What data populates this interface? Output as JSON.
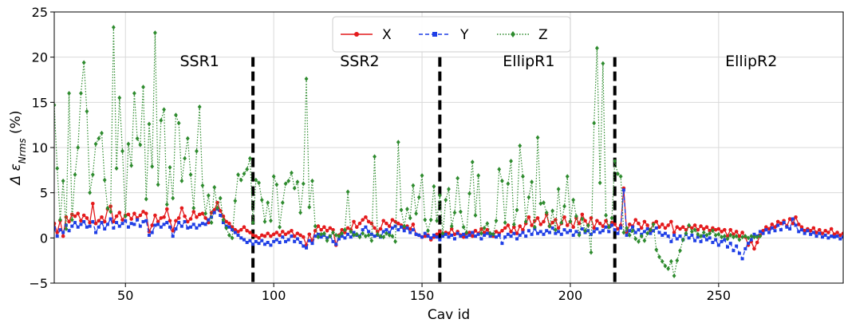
{
  "chart_data": {
    "type": "line",
    "title": "",
    "xlabel": "Cav id",
    "ylabel_prefix": "Δ ε",
    "ylabel_sub": "Nrms",
    "ylabel_suffix": " (%)",
    "xlim": [
      26,
      292
    ],
    "ylim": [
      -5,
      25
    ],
    "xticks": [
      50,
      100,
      150,
      200,
      250
    ],
    "yticks": [
      -5,
      0,
      5,
      10,
      15,
      20,
      25
    ],
    "grid": true,
    "legend_position": "top-center",
    "dividers": [
      93,
      156,
      215
    ],
    "regions": [
      {
        "label": "SSR1",
        "x": 75,
        "y": 19
      },
      {
        "label": "SSR2",
        "x": 129,
        "y": 19
      },
      {
        "label": "EllipR1",
        "x": 186,
        "y": 19
      },
      {
        "label": "EllipR2",
        "x": 261,
        "y": 19
      }
    ],
    "series": [
      {
        "name": "X",
        "color": "#e41a1c",
        "dash": "",
        "marker": "circle",
        "values": [
          1.6,
          0.6,
          1.9,
          0.2,
          2.3,
          1.8,
          2.6,
          2.4,
          2.7,
          1.9,
          2.5,
          2.2,
          1.7,
          3.8,
          1.6,
          1.9,
          2.3,
          1.8,
          3.2,
          3.5,
          1.8,
          2.4,
          2.8,
          2.0,
          2.5,
          2.6,
          2.1,
          2.7,
          2.2,
          2.5,
          2.9,
          2.7,
          0.7,
          1.4,
          2.5,
          1.8,
          2.2,
          2.3,
          3.2,
          1.9,
          0.8,
          1.9,
          2.2,
          3.3,
          2.4,
          1.8,
          2.1,
          2.9,
          2.3,
          2.6,
          2.7,
          2.2,
          1.7,
          2.8,
          3.1,
          3.9,
          3.0,
          2.4,
          1.8,
          1.6,
          1.2,
          0.9,
          0.7,
          0.9,
          1.2,
          0.8,
          0.6,
          0.3,
          0.2,
          0.0,
          0.3,
          0.2,
          0.5,
          0.2,
          0.4,
          0.6,
          0.3,
          0.7,
          0.4,
          0.6,
          0.8,
          0.2,
          0.5,
          0.3,
          0.1,
          -0.8,
          0.4,
          -0.3,
          0.8,
          1.3,
          0.9,
          1.2,
          0.8,
          1.1,
          0.9,
          -0.8,
          0.3,
          0.9,
          0.6,
          1.1,
          0.9,
          1.8,
          1.2,
          1.6,
          2.0,
          2.3,
          1.8,
          1.6,
          1.1,
          0.7,
          1.0,
          1.9,
          1.6,
          1.3,
          2.0,
          1.8,
          1.6,
          1.4,
          1.1,
          1.3,
          1.0,
          1.5,
          0.4,
          0.3,
          0.1,
          0.2,
          0.3,
          -0.2,
          0.1,
          0.4,
          0.7,
          0.3,
          0.6,
          0.5,
          1.0,
          0.4,
          0.7,
          0.3,
          0.1,
          0.5,
          0.6,
          0.2,
          0.8,
          0.5,
          1.0,
          0.6,
          0.9,
          0.4,
          0.2,
          0.7,
          0.5,
          0.8,
          1.1,
          1.4,
          0.7,
          1.2,
          0.5,
          1.3,
          0.9,
          1.6,
          2.3,
          1.4,
          1.9,
          2.2,
          1.5,
          1.8,
          2.6,
          1.3,
          1.7,
          2.0,
          1.1,
          1.6,
          2.3,
          1.4,
          1.8,
          1.2,
          2.2,
          1.6,
          2.6,
          1.9,
          1.4,
          2.2,
          1.1,
          1.9,
          1.6,
          1.3,
          1.9,
          1.2,
          1.7,
          1.5,
          1.0,
          1.4,
          5.5,
          0.6,
          1.5,
          1.3,
          2.0,
          1.6,
          1.1,
          1.8,
          1.4,
          0.8,
          1.6,
          1.8,
          1.2,
          1.5,
          1.1,
          1.4,
          1.8,
          0.6,
          1.2,
          1.0,
          1.2,
          0.9,
          1.3,
          1.1,
          1.4,
          0.9,
          1.3,
          1.0,
          1.2,
          0.8,
          1.1,
          0.9,
          1.0,
          0.7,
          0.9,
          0.2,
          0.9,
          0.4,
          0.7,
          0.2,
          0.6,
          0.1,
          -0.8,
          -0.4,
          -1.2,
          -0.5,
          0.3,
          0.8,
          1.2,
          1.0,
          1.5,
          1.2,
          1.8,
          1.6,
          1.9,
          1.3,
          2.1,
          1.6,
          2.3,
          1.5,
          1.2,
          0.8,
          1.0,
          0.8,
          1.1,
          0.6,
          0.9,
          0.5,
          0.8,
          0.6,
          1.0,
          0.4,
          0.6,
          0.3,
          0.5,
          0.2,
          0.4,
          0.2,
          0.3,
          0.2,
          0.3,
          0.2,
          0.3
        ]
      },
      {
        "name": "Y",
        "color": "#1f3fe6",
        "dash": "5,3",
        "marker": "square",
        "values": [
          1.1,
          0.2,
          0.9,
          0.6,
          1.4,
          0.8,
          1.3,
          1.7,
          1.2,
          1.5,
          1.8,
          1.2,
          1.3,
          1.8,
          0.6,
          1.2,
          1.7,
          1.0,
          1.5,
          2.1,
          1.1,
          1.7,
          1.3,
          1.6,
          1.9,
          1.2,
          1.6,
          1.5,
          2.0,
          1.3,
          1.8,
          1.9,
          0.3,
          0.6,
          1.4,
          1.5,
          1.2,
          1.5,
          1.7,
          1.2,
          0.2,
          1.0,
          1.7,
          1.3,
          1.8,
          1.1,
          1.2,
          1.5,
          1.1,
          1.4,
          1.6,
          1.5,
          2.0,
          2.3,
          2.8,
          3.2,
          2.5,
          1.7,
          1.3,
          1.2,
          0.9,
          0.6,
          0.3,
          0.0,
          -0.2,
          -0.5,
          -0.3,
          -0.7,
          -0.4,
          -0.6,
          -0.3,
          -0.7,
          -0.5,
          -0.8,
          -0.4,
          -0.2,
          -0.5,
          0.1,
          -0.4,
          -0.2,
          0.2,
          -0.4,
          -0.1,
          -0.5,
          -0.9,
          -1.1,
          -0.3,
          -0.6,
          0.2,
          0.4,
          0.1,
          0.3,
          0.0,
          0.2,
          -0.4,
          -0.7,
          -0.1,
          0.2,
          0.0,
          0.4,
          0.1,
          0.6,
          0.3,
          0.2,
          0.9,
          1.2,
          0.7,
          0.4,
          0.2,
          0.3,
          0.1,
          0.7,
          0.9,
          0.6,
          1.1,
          1.3,
          0.9,
          1.2,
          0.8,
          1.1,
          0.6,
          0.9,
          0.4,
          0.3,
          0.1,
          0.5,
          0.2,
          0.0,
          0.3,
          0.1,
          -0.2,
          0.2,
          0.4,
          0.1,
          0.3,
          -0.1,
          0.5,
          0.2,
          0.4,
          0.1,
          0.3,
          0.6,
          0.2,
          0.4,
          -0.1,
          0.3,
          0.5,
          0.2,
          0.4,
          0.1,
          0.3,
          -0.6,
          0.1,
          0.4,
          0.2,
          0.5,
          -0.1,
          0.3,
          0.6,
          0.2,
          0.8,
          0.4,
          1.0,
          0.5,
          0.7,
          0.4,
          0.8,
          0.6,
          1.1,
          0.5,
          0.7,
          0.4,
          0.9,
          0.6,
          0.8,
          0.3,
          0.7,
          0.5,
          1.0,
          0.6,
          0.8,
          0.4,
          0.7,
          1.0,
          0.6,
          0.8,
          1.2,
          0.7,
          1.4,
          0.9,
          0.5,
          1.1,
          5.3,
          0.3,
          0.8,
          1.2,
          0.6,
          0.9,
          0.4,
          0.7,
          1.0,
          0.5,
          0.8,
          1.1,
          0.6,
          0.3,
          0.5,
          0.2,
          -0.4,
          0.3,
          -0.1,
          0.2,
          -0.2,
          0.4,
          0.0,
          0.3,
          -0.3,
          0.1,
          -0.4,
          0.2,
          -0.2,
          0.0,
          -0.5,
          -0.2,
          -0.8,
          -0.4,
          -0.2,
          -1.0,
          -0.6,
          -1.4,
          -0.9,
          -1.7,
          -2.3,
          -1.2,
          -0.6,
          -0.2,
          0.4,
          0.2,
          0.7,
          0.5,
          0.9,
          0.6,
          1.1,
          0.8,
          1.4,
          0.9,
          1.7,
          1.2,
          1.0,
          2.1,
          1.4,
          0.7,
          0.9,
          0.5,
          0.8,
          0.4,
          0.6,
          0.2,
          0.5,
          0.1,
          0.3,
          0.0,
          0.2,
          0.1,
          0.2,
          -0.1,
          0.1,
          0.2,
          0.1,
          0.0,
          0.1
        ]
      },
      {
        "name": "Z",
        "color": "#2e8b2e",
        "dash": "1.5,2",
        "marker": "diamond",
        "values": [
          14.7,
          7.7,
          2.0,
          6.3,
          1.0,
          16.0,
          2.0,
          7.0,
          10.0,
          16.0,
          19.4,
          14.0,
          5.0,
          7.0,
          10.4,
          11.0,
          11.6,
          6.4,
          3.3,
          2.9,
          23.3,
          7.7,
          15.5,
          9.6,
          2.4,
          10.4,
          8.0,
          16.0,
          11.0,
          10.3,
          16.7,
          4.3,
          12.6,
          7.9,
          22.7,
          5.9,
          13.0,
          14.2,
          3.7,
          7.8,
          4.4,
          13.6,
          12.7,
          6.3,
          8.8,
          11.0,
          7.0,
          3.3,
          9.6,
          14.5,
          5.8,
          2.7,
          4.7,
          1.7,
          5.6,
          3.3,
          4.4,
          2.0,
          1.1,
          0.3,
          0.0,
          4.1,
          7.0,
          6.4,
          7.1,
          7.6,
          8.8,
          1.7,
          6.4,
          6.1,
          4.2,
          1.8,
          3.9,
          1.9,
          6.8,
          5.9,
          1.2,
          3.9,
          6.0,
          6.3,
          7.2,
          5.5,
          6.2,
          2.8,
          6.0,
          17.6,
          3.4,
          6.3,
          1.3,
          0.1,
          0.4,
          0.5,
          -0.3,
          0.2,
          0.6,
          0.3,
          0.2,
          0.5,
          0.9,
          5.1,
          0.7,
          0.3,
          0.4,
          0.1,
          0.5,
          0.2,
          0.3,
          -0.3,
          9.0,
          0.4,
          0.2,
          0.1,
          0.5,
          0.3,
          0.2,
          -0.4,
          10.6,
          3.1,
          1.3,
          3.2,
          2.2,
          5.8,
          2.7,
          4.5,
          6.9,
          2.0,
          0.8,
          2.0,
          5.7,
          1.9,
          4.7,
          0.5,
          4.2,
          5.4,
          1.3,
          2.8,
          6.6,
          2.9,
          1.2,
          0.6,
          4.9,
          8.4,
          2.5,
          6.9,
          0.5,
          1.1,
          1.6,
          0.5,
          0.4,
          1.9,
          7.6,
          6.3,
          1.7,
          6.0,
          8.5,
          1.5,
          3.1,
          10.2,
          6.8,
          1.8,
          4.5,
          6.2,
          1.2,
          11.1,
          3.8,
          3.9,
          2.8,
          1.3,
          3.0,
          0.9,
          5.4,
          1.7,
          3.5,
          6.8,
          1.8,
          4.2,
          2.4,
          0.3,
          2.1,
          0.8,
          1.4,
          -1.6,
          12.7,
          21.0,
          6.1,
          19.3,
          2.5,
          1.2,
          2.2,
          8.5,
          7.1,
          6.8,
          0.6,
          1.1,
          0.3,
          0.8,
          -0.1,
          -0.4,
          0.2,
          -0.3,
          0.5,
          0.9,
          1.5,
          -1.3,
          -2.1,
          -2.6,
          -3.1,
          -3.4,
          -2.6,
          -4.2,
          -2.5,
          -1.4,
          -0.2,
          0.5,
          1.4,
          0.7,
          0.9,
          0.4,
          0.2,
          0.6,
          0.3,
          0.5,
          0.8,
          0.3,
          0.4,
          0.1,
          0.2,
          -0.1,
          0.3,
          0.1,
          0.2,
          -0.2,
          0.1,
          0.2,
          0.0,
          0.2,
          0.1,
          0.1,
          0.2
        ]
      }
    ]
  }
}
